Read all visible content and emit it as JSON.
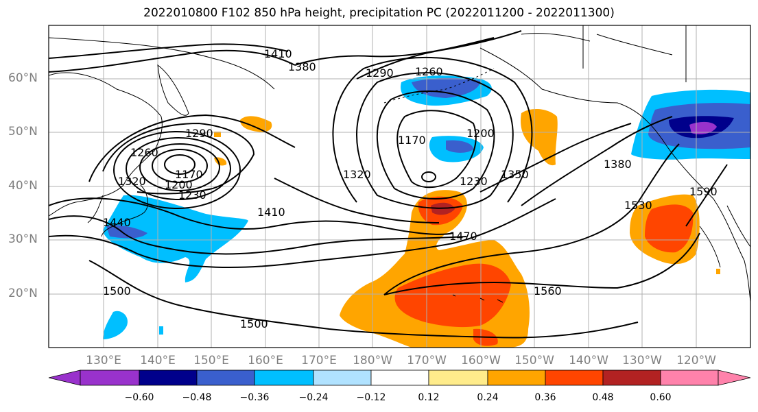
{
  "title": "2022010800 F102 850 hPa height, precipitation PC (2022011200 - 2022011300)",
  "lat_labels": [
    "60°N",
    "50°N",
    "40°N",
    "30°N",
    "20°N"
  ],
  "lon_labels": [
    "130°E",
    "140°E",
    "150°E",
    "160°E",
    "170°E",
    "180°W",
    "170°W",
    "160°W",
    "150°W",
    "140°W",
    "130°W",
    "120°W"
  ],
  "colorbar": {
    "ticks": [
      "−0.60",
      "−0.48",
      "−0.36",
      "−0.24",
      "−0.12",
      "0.12",
      "0.24",
      "0.36",
      "0.48",
      "0.60"
    ],
    "colors": [
      "#9932cc",
      "#00008b",
      "#3a5fcd",
      "#00bfff",
      "#b0e2ff",
      "#ffffff",
      "#ffec8b",
      "#ffa500",
      "#ff4500",
      "#b22222",
      "#ff82ab",
      "#ff82ab"
    ]
  },
  "contour_labels": [
    "1410",
    "1380",
    "1290",
    "1260",
    "1290",
    "1260",
    "1170",
    "1200",
    "1230",
    "1320",
    "1440",
    "1170",
    "1200",
    "1230",
    "1320",
    "1410",
    "1350",
    "1380",
    "1470",
    "1530",
    "1590",
    "1500",
    "1500",
    "1560"
  ]
}
